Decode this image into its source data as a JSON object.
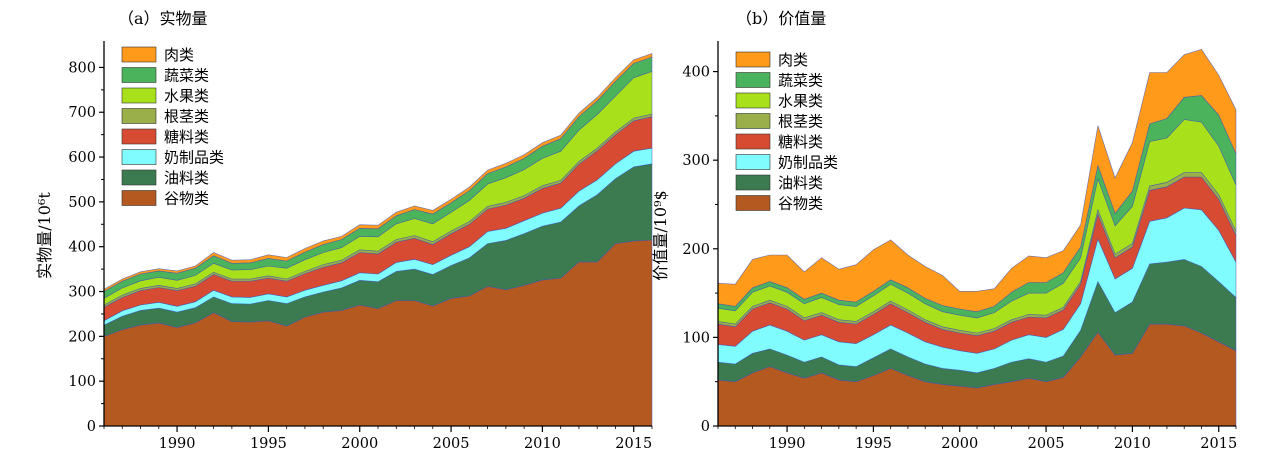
{
  "chart_data": [
    {
      "panel": "a",
      "type": "area",
      "stacked": true,
      "title": "（a）实物量",
      "ylabel": "实物量/10⁶t",
      "xlabel": "",
      "ylim": [
        0,
        850
      ],
      "yticks": [
        0,
        100,
        200,
        300,
        400,
        500,
        600,
        700,
        800
      ],
      "xlim": [
        1986,
        2016
      ],
      "xticks": [
        1990,
        1995,
        2000,
        2005,
        2010,
        2015
      ],
      "legend_position": "top-left",
      "legend_order": [
        "肉类",
        "蔬菜类",
        "水果类",
        "根茎类",
        "糖料类",
        "奶制品类",
        "油料类",
        "谷物类"
      ],
      "x": [
        1986,
        1987,
        1988,
        1989,
        1990,
        1991,
        1992,
        1993,
        1994,
        1995,
        1996,
        1997,
        1998,
        1999,
        2000,
        2001,
        2002,
        2003,
        2004,
        2005,
        2006,
        2007,
        2008,
        2009,
        2010,
        2011,
        2012,
        2013,
        2014,
        2015,
        2016
      ],
      "series": [
        {
          "name": "谷物类",
          "color": "#b45a21",
          "values": [
            200,
            215,
            225,
            230,
            220,
            230,
            253,
            233,
            232,
            235,
            223,
            243,
            254,
            258,
            270,
            262,
            280,
            280,
            268,
            285,
            290,
            312,
            304,
            314,
            326,
            330,
            366,
            366,
            407,
            413,
            415
          ]
        },
        {
          "name": "油料类",
          "color": "#3b7b4f",
          "values": [
            25,
            30,
            33,
            33,
            34,
            34,
            35,
            40,
            40,
            45,
            50,
            45,
            45,
            50,
            55,
            60,
            65,
            70,
            70,
            73,
            85,
            95,
            110,
            115,
            120,
            125,
            125,
            150,
            145,
            165,
            170
          ]
        },
        {
          "name": "奶制品类",
          "color": "#80fcff",
          "values": [
            10,
            12,
            12,
            13,
            13,
            13,
            15,
            15,
            15,
            15,
            15,
            15,
            15,
            16,
            17,
            17,
            20,
            22,
            22,
            23,
            25,
            27,
            27,
            29,
            29,
            31,
            33,
            33,
            33,
            35,
            35
          ]
        },
        {
          "name": "糖料类",
          "color": "#d84b33",
          "values": [
            30,
            30,
            32,
            33,
            35,
            35,
            35,
            35,
            36,
            35,
            35,
            37,
            40,
            40,
            45,
            45,
            45,
            47,
            45,
            48,
            50,
            50,
            52,
            50,
            55,
            56,
            60,
            65,
            65,
            68,
            70
          ]
        },
        {
          "name": "根茎类",
          "color": "#9aae4a",
          "values": [
            5,
            5,
            5,
            5,
            5,
            5,
            5,
            5,
            5,
            5,
            5,
            5,
            6,
            6,
            6,
            6,
            6,
            6,
            6,
            6,
            6,
            6,
            6,
            6,
            6,
            6,
            6,
            6,
            6,
            6,
            6
          ]
        },
        {
          "name": "水果类",
          "color": "#a8e01c",
          "values": [
            15,
            16,
            17,
            18,
            18,
            19,
            20,
            20,
            21,
            22,
            24,
            26,
            27,
            28,
            30,
            32,
            35,
            38,
            40,
            42,
            47,
            50,
            55,
            58,
            61,
            65,
            70,
            75,
            80,
            90,
            95
          ]
        },
        {
          "name": "蔬菜类",
          "color": "#4bb35c",
          "values": [
            15,
            15,
            15,
            14,
            16,
            16,
            17,
            15,
            15,
            17,
            16,
            17,
            18,
            18,
            18,
            18,
            18,
            20,
            22,
            21,
            22,
            23,
            24,
            25,
            27,
            28,
            30,
            30,
            33,
            32,
            32
          ]
        },
        {
          "name": "肉类",
          "color": "#ff9a1a",
          "values": [
            5,
            5,
            5,
            5,
            5,
            5,
            7,
            7,
            7,
            8,
            8,
            8,
            8,
            7,
            8,
            8,
            8,
            8,
            8,
            8,
            8,
            8,
            8,
            8,
            8,
            8,
            8,
            8,
            8,
            8,
            8
          ]
        }
      ]
    },
    {
      "panel": "b",
      "type": "area",
      "stacked": true,
      "title": "（b）价值量",
      "ylabel": "价值量/10⁹$",
      "xlabel": "",
      "ylim": [
        0,
        430
      ],
      "yticks": [
        0,
        100,
        200,
        300,
        400
      ],
      "xlim": [
        1986,
        2016
      ],
      "xticks": [
        1990,
        1995,
        2000,
        2005,
        2010,
        2015
      ],
      "legend_position": "top-left",
      "legend_order": [
        "肉类",
        "蔬菜类",
        "水果类",
        "根茎类",
        "糖料类",
        "奶制品类",
        "油料类",
        "谷物类"
      ],
      "x": [
        1986,
        1987,
        1988,
        1989,
        1990,
        1991,
        1992,
        1993,
        1994,
        1995,
        1996,
        1997,
        1998,
        1999,
        2000,
        2001,
        2002,
        2003,
        2004,
        2005,
        2006,
        2007,
        2008,
        2009,
        2010,
        2011,
        2012,
        2013,
        2014,
        2015,
        2016
      ],
      "series": [
        {
          "name": "谷物类",
          "color": "#b45a21",
          "values": [
            52,
            50,
            60,
            67,
            60,
            54,
            60,
            52,
            50,
            57,
            65,
            57,
            50,
            47,
            45,
            43,
            47,
            50,
            54,
            50,
            55,
            78,
            106,
            80,
            82,
            115,
            115,
            113,
            105,
            95,
            85
          ]
        },
        {
          "name": "油料类",
          "color": "#3b7b4f",
          "values": [
            20,
            20,
            22,
            20,
            20,
            18,
            18,
            17,
            17,
            20,
            22,
            21,
            20,
            18,
            18,
            17,
            18,
            22,
            22,
            22,
            24,
            30,
            57,
            48,
            58,
            68,
            70,
            75,
            75,
            68,
            60
          ]
        },
        {
          "name": "奶制品类",
          "color": "#80fcff",
          "values": [
            20,
            20,
            25,
            27,
            27,
            25,
            25,
            26,
            26,
            26,
            27,
            27,
            25,
            24,
            22,
            22,
            22,
            25,
            27,
            28,
            30,
            30,
            48,
            38,
            38,
            48,
            50,
            58,
            64,
            58,
            40
          ]
        },
        {
          "name": "糖料类",
          "color": "#d84b33",
          "values": [
            23,
            22,
            25,
            25,
            25,
            22,
            22,
            22,
            22,
            23,
            24,
            23,
            22,
            20,
            20,
            20,
            20,
            20,
            20,
            22,
            22,
            22,
            28,
            24,
            24,
            35,
            35,
            35,
            37,
            35,
            30
          ]
        },
        {
          "name": "根茎类",
          "color": "#9aae4a",
          "values": [
            3,
            3,
            3,
            3,
            3,
            3,
            3,
            3,
            3,
            3,
            3,
            3,
            3,
            3,
            3,
            3,
            3,
            3,
            3,
            3,
            3,
            3,
            5,
            4,
            4,
            5,
            5,
            5,
            5,
            5,
            5
          ]
        },
        {
          "name": "水果类",
          "color": "#a8e01c",
          "values": [
            15,
            15,
            16,
            16,
            16,
            16,
            17,
            17,
            17,
            18,
            19,
            19,
            18,
            17,
            17,
            17,
            18,
            21,
            24,
            25,
            27,
            27,
            35,
            32,
            42,
            50,
            50,
            60,
            57,
            55,
            52
          ]
        },
        {
          "name": "蔬菜类",
          "color": "#4bb35c",
          "values": [
            5,
            5,
            5,
            5,
            5,
            5,
            5,
            5,
            5,
            5,
            5,
            6,
            6,
            7,
            7,
            7,
            7,
            10,
            12,
            12,
            12,
            12,
            15,
            14,
            17,
            20,
            22,
            25,
            30,
            35,
            35
          ]
        },
        {
          "name": "肉类",
          "color": "#ff9a1a",
          "values": [
            23,
            25,
            32,
            30,
            37,
            31,
            40,
            35,
            42,
            47,
            45,
            37,
            36,
            34,
            20,
            23,
            20,
            27,
            30,
            28,
            25,
            25,
            45,
            40,
            55,
            58,
            52,
            48,
            52,
            45,
            50
          ]
        }
      ]
    }
  ]
}
